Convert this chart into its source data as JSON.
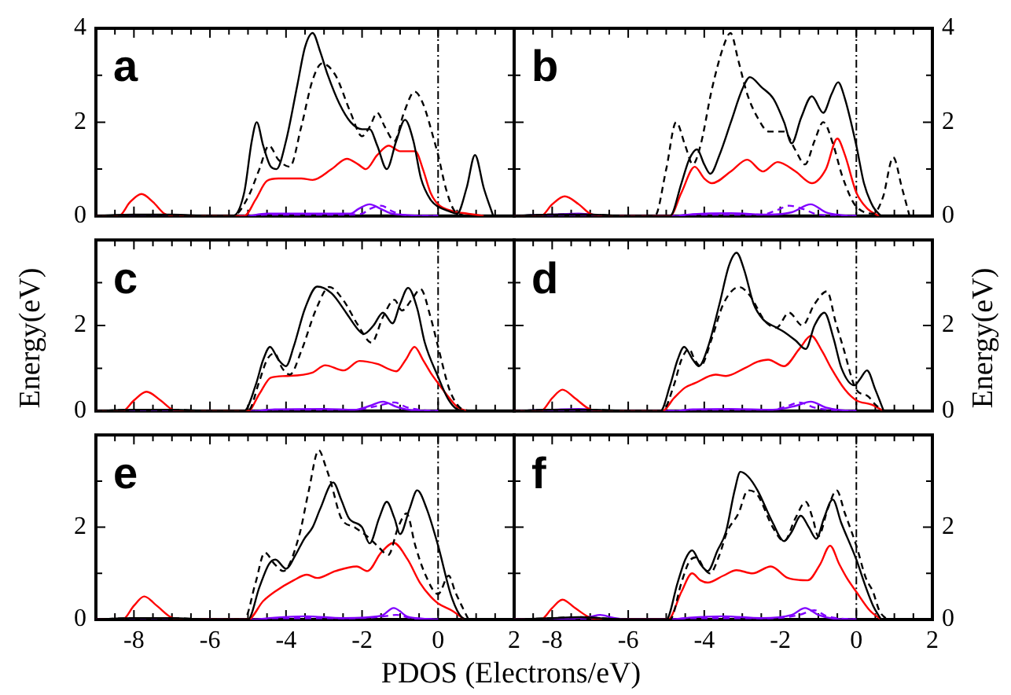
{
  "chart_data": [
    {
      "type": "line",
      "annotations": [
        "a"
      ],
      "xlim": [
        -9,
        2
      ],
      "ylim": [
        0,
        4
      ],
      "tick_labels": "y",
      "xticks": [
        {
          "value": -8.5,
          "label": null
        },
        -8,
        {
          "value": -7.5,
          "label": null
        },
        {
          "value": -7,
          "label": null
        },
        {
          "value": -6.5,
          "label": null
        },
        -6,
        {
          "value": -5.5,
          "label": null
        },
        {
          "value": -5,
          "label": null
        },
        {
          "value": -4.5,
          "label": null
        },
        -4,
        {
          "value": -3.5,
          "label": null
        },
        {
          "value": -3,
          "label": null
        },
        {
          "value": -2.5,
          "label": null
        },
        -2,
        {
          "value": -1.5,
          "label": null
        },
        {
          "value": -1,
          "label": null
        },
        {
          "value": -0.5,
          "label": null
        },
        0,
        {
          "value": 0.5,
          "label": null
        },
        {
          "value": 1,
          "label": null
        },
        {
          "value": 1.5,
          "label": null
        }
      ],
      "yticks": [
        0,
        {
          "value": 1,
          "label": null
        },
        2,
        {
          "value": 3,
          "label": null
        },
        4
      ],
      "ref_lines": [
        {
          "axis": "x",
          "value": 0,
          "line_style": "dashed"
        }
      ],
      "series": [
        {
          "color": "#000000",
          "x": [
            -9,
            -8,
            -7,
            -6,
            -5.4,
            -5.1,
            -4.9,
            -4.77,
            -4.6,
            -4.4,
            -4.25,
            -4,
            -3.7,
            -3.5,
            -3.3,
            -3.1,
            -2.9,
            -2.6,
            -2.3,
            -2,
            -1.8,
            -1.6,
            -1.35,
            -1.1,
            -0.87,
            -0.65,
            -0.45,
            -0.2,
            0,
            0.3,
            0.5,
            0.75,
            0.97,
            1.2,
            1.45
          ],
          "values": [
            0,
            0.03,
            0.03,
            0,
            0,
            0.5,
            1.6,
            2,
            1.5,
            1.05,
            1,
            1.6,
            2.8,
            3.6,
            3.9,
            3.5,
            3,
            2.4,
            2,
            1.85,
            1.85,
            1.5,
            1,
            1.6,
            2.05,
            1.6,
            0.8,
            0.35,
            0.2,
            0.1,
            0.05,
            0.6,
            1.3,
            0.6,
            0
          ]
        },
        {
          "color": "#000000",
          "line_style": "dashed",
          "x": [
            -9,
            -5.4,
            -5,
            -4.7,
            -4.45,
            -4.2,
            -3.9,
            -3.6,
            -3.3,
            -3.05,
            -2.7,
            -2.3,
            -2,
            -1.8,
            -1.6,
            -1.4,
            -1.15,
            -0.9,
            -0.62,
            -0.4,
            -0.1,
            0,
            0.2,
            0.4,
            0.7
          ],
          "values": [
            0,
            0,
            0.4,
            1,
            1.5,
            1.2,
            1.05,
            1.9,
            2.9,
            3.25,
            3,
            2.2,
            1.7,
            1.9,
            2.2,
            1.9,
            1.6,
            2.2,
            2.65,
            2.4,
            1.6,
            1.3,
            0.6,
            0.15,
            0
          ]
        },
        {
          "color": "#ff0000",
          "x": [
            -9,
            -8.4,
            -8.1,
            -7.8,
            -7.5,
            -7.2,
            -6.9,
            -5.1,
            -4.8,
            -4.5,
            -4.2,
            -3.6,
            -3.3,
            -2.8,
            -2.4,
            -2.1,
            -1.9,
            -1.6,
            -1.3,
            -1,
            -0.6,
            -0.4,
            -0.2,
            0,
            0.4,
            0.8,
            1.2
          ],
          "values": [
            0,
            0,
            0.3,
            0.47,
            0.3,
            0.05,
            0,
            0,
            0.35,
            0.75,
            0.8,
            0.8,
            0.77,
            1,
            1.22,
            1.1,
            1,
            1.3,
            1.5,
            1.38,
            1.38,
            1,
            0.5,
            0.25,
            0.1,
            0.05,
            0
          ]
        },
        {
          "color": "#8000ff",
          "x": [
            -5,
            -4.5,
            -3,
            -2.3,
            -2.1,
            -1.8,
            -1.5,
            -1.2,
            0
          ],
          "values": [
            0,
            0.05,
            0.05,
            0.05,
            0.15,
            0.25,
            0.15,
            0.05,
            0
          ]
        },
        {
          "color": "#8000ff",
          "line_style": "dashed",
          "x": [
            -9,
            -5,
            -4.5,
            -2.5,
            -2,
            -1.8,
            -1.5,
            -1.2,
            -0.9,
            0
          ],
          "values": [
            0,
            0,
            0.03,
            0.03,
            0.05,
            0.15,
            0.22,
            0.1,
            0.02,
            0
          ]
        }
      ]
    },
    {
      "type": "line",
      "annotations": [
        "b"
      ],
      "xlim": [
        -9,
        2
      ],
      "ylim": [
        0,
        4
      ],
      "tick_labels": "y",
      "xticks": [
        {
          "value": -8.5,
          "label": null
        },
        -8,
        {
          "value": -7.5,
          "label": null
        },
        {
          "value": -7,
          "label": null
        },
        {
          "value": -6.5,
          "label": null
        },
        -6,
        {
          "value": -5.5,
          "label": null
        },
        {
          "value": -5,
          "label": null
        },
        {
          "value": -4.5,
          "label": null
        },
        -4,
        {
          "value": -3.5,
          "label": null
        },
        {
          "value": -3,
          "label": null
        },
        {
          "value": -2.5,
          "label": null
        },
        -2,
        {
          "value": -1.5,
          "label": null
        },
        {
          "value": -1,
          "label": null
        },
        {
          "value": -0.5,
          "label": null
        },
        0,
        {
          "value": 0.5,
          "label": null
        },
        {
          "value": 1,
          "label": null
        },
        {
          "value": 1.5,
          "label": null
        }
      ],
      "yticks": [
        0,
        {
          "value": 1,
          "label": null
        },
        2,
        {
          "value": 3,
          "label": null
        },
        4
      ],
      "ref_lines": [
        {
          "axis": "x",
          "value": 0,
          "line_style": "dashed"
        }
      ],
      "series": [
        {
          "color": "#000000",
          "x": [
            -9,
            -8,
            -7,
            -6,
            -4.9,
            -4.6,
            -4.4,
            -4.19,
            -4,
            -3.84,
            -3.6,
            -3.3,
            -3,
            -2.8,
            -2.5,
            -2.18,
            -1.9,
            -1.7,
            -1.45,
            -1.17,
            -0.87,
            -0.65,
            -0.48,
            -0.3,
            0,
            0.2,
            0.44,
            0.65
          ],
          "values": [
            0,
            0.03,
            0.03,
            0,
            0,
            0.7,
            1.2,
            1.42,
            1.1,
            0.9,
            1.3,
            2,
            2.7,
            2.96,
            2.75,
            2.5,
            2,
            1.55,
            2.1,
            2.55,
            2.2,
            2.6,
            2.85,
            2.5,
            1.5,
            0.7,
            0.2,
            0
          ]
        },
        {
          "color": "#000000",
          "line_style": "dashed",
          "x": [
            -9,
            -8,
            -7,
            -6,
            -5.3,
            -5,
            -4.74,
            -4.5,
            -4.3,
            -4.1,
            -3.8,
            -3.5,
            -3.31,
            -3.1,
            -2.87,
            -2.6,
            -2.3,
            -1.9,
            -1.6,
            -1.35,
            -1.1,
            -0.87,
            -0.6,
            -0.39,
            -0.15,
            0,
            0.44,
            0.7,
            0.97,
            1.2,
            1.4
          ],
          "values": [
            0,
            0.03,
            0.03,
            0,
            0,
            1,
            2,
            1.5,
            1.1,
            1.5,
            2.7,
            3.6,
            3.9,
            3.3,
            2.6,
            2.1,
            1.8,
            1.8,
            1.4,
            1.1,
            1.6,
            2,
            1.5,
            0.9,
            0.4,
            0.2,
            0.05,
            0.4,
            1.25,
            0.6,
            0
          ]
        },
        {
          "color": "#ff0000",
          "x": [
            -9,
            -8.3,
            -8,
            -7.67,
            -7.3,
            -7,
            -6.6,
            -4.9,
            -4.6,
            -4.25,
            -4,
            -3.8,
            -3.3,
            -2.87,
            -2.46,
            -2.07,
            -1.6,
            -1.17,
            -0.8,
            -0.5,
            -0.3,
            0,
            0.3,
            0.6
          ],
          "values": [
            0,
            0,
            0.25,
            0.42,
            0.25,
            0.05,
            0,
            0,
            0.5,
            1.05,
            0.8,
            0.7,
            0.95,
            1.2,
            0.95,
            1.15,
            0.95,
            0.7,
            1,
            1.65,
            1.3,
            0.5,
            0.15,
            0
          ]
        },
        {
          "color": "#8000ff",
          "x": [
            -9,
            -8,
            -7.3,
            -6.5,
            -4.8,
            -4.3,
            -3.3,
            -2.3,
            -1.7,
            -1.2,
            -0.8,
            -0.4,
            0
          ],
          "values": [
            0,
            0.03,
            0.05,
            0,
            0,
            0.04,
            0.06,
            0.03,
            0.08,
            0.25,
            0.08,
            0.02,
            0
          ]
        },
        {
          "color": "#8000ff",
          "line_style": "dashed",
          "x": [
            -9,
            -4.8,
            -4.3,
            -2.5,
            -2.1,
            -1.77,
            -1.4,
            -1,
            0
          ],
          "values": [
            0,
            0,
            0.03,
            0.03,
            0.12,
            0.22,
            0.15,
            0.03,
            0
          ]
        }
      ]
    },
    {
      "type": "line",
      "annotations": [
        "c"
      ],
      "ylabel": "Energy(eV)",
      "xlim": [
        -9,
        2
      ],
      "ylim": [
        0,
        4
      ],
      "tick_labels": "y",
      "xticks": [
        {
          "value": -8.5,
          "label": null
        },
        -8,
        {
          "value": -7.5,
          "label": null
        },
        {
          "value": -7,
          "label": null
        },
        {
          "value": -6.5,
          "label": null
        },
        -6,
        {
          "value": -5.5,
          "label": null
        },
        {
          "value": -5,
          "label": null
        },
        {
          "value": -4.5,
          "label": null
        },
        -4,
        {
          "value": -3.5,
          "label": null
        },
        {
          "value": -3,
          "label": null
        },
        {
          "value": -2.5,
          "label": null
        },
        -2,
        {
          "value": -1.5,
          "label": null
        },
        {
          "value": -1,
          "label": null
        },
        {
          "value": -0.5,
          "label": null
        },
        0,
        {
          "value": 0.5,
          "label": null
        },
        {
          "value": 1,
          "label": null
        },
        {
          "value": 1.5,
          "label": null
        }
      ],
      "yticks": [
        0,
        {
          "value": 1,
          "label": null
        },
        2,
        {
          "value": 3,
          "label": null
        },
        {
          "value": 4,
          "label": null
        }
      ],
      "ref_lines": [
        {
          "axis": "x",
          "value": 0,
          "line_style": "dashed"
        }
      ],
      "series": [
        {
          "color": "#000000",
          "x": [
            -9,
            -8,
            -7,
            -6,
            -5.1,
            -4.8,
            -4.6,
            -4.42,
            -4.2,
            -4,
            -3.8,
            -3.5,
            -3.18,
            -2.8,
            -2.42,
            -2.1,
            -1.96,
            -1.7,
            -1.45,
            -1.2,
            -1,
            -0.79,
            -0.55,
            -0.35,
            0,
            0.25,
            0.48,
            0.7
          ],
          "values": [
            0,
            0.03,
            0.03,
            0,
            0,
            0.6,
            1.2,
            1.5,
            1.2,
            1.05,
            1.5,
            2.4,
            2.91,
            2.75,
            2.3,
            1.9,
            1.8,
            2,
            2.3,
            2.05,
            2.5,
            2.88,
            2.4,
            1.6,
            0.8,
            0.3,
            0.05,
            0
          ]
        },
        {
          "color": "#000000",
          "line_style": "dashed",
          "x": [
            -9,
            -8,
            -7,
            -6,
            -5,
            -4.7,
            -4.5,
            -4.3,
            -4.1,
            -3.9,
            -3.6,
            -3.2,
            -2.86,
            -2.5,
            -2.1,
            -1.75,
            -1.45,
            -1.15,
            -0.95,
            -0.7,
            -0.46,
            -0.2,
            0,
            0.3,
            0.55,
            0.8
          ],
          "values": [
            0,
            0.03,
            0.03,
            0,
            0,
            0.7,
            1.2,
            1.35,
            1,
            0.85,
            1.4,
            2.4,
            2.9,
            2.6,
            2,
            1.6,
            2.2,
            2.6,
            2.35,
            2.6,
            2.85,
            2.2,
            1.5,
            0.5,
            0.1,
            0
          ]
        },
        {
          "color": "#ff0000",
          "x": [
            -9,
            -8.3,
            -8,
            -7.67,
            -7.3,
            -7,
            -6.7,
            -5,
            -4.7,
            -4.4,
            -4,
            -3.3,
            -2.97,
            -2.48,
            -2.07,
            -1.6,
            -1.1,
            -0.85,
            -0.62,
            -0.4,
            -0.2,
            0,
            0.3,
            0.5,
            0.75
          ],
          "values": [
            0,
            0,
            0.25,
            0.45,
            0.25,
            0.04,
            0,
            0,
            0.4,
            0.78,
            0.82,
            0.9,
            1.07,
            0.95,
            1.17,
            1.1,
            0.93,
            1.2,
            1.5,
            1.2,
            0.9,
            0.65,
            0.3,
            0.1,
            0
          ]
        },
        {
          "color": "#8000ff",
          "x": [
            -4.8,
            -4.3,
            -3,
            -2.2,
            -1.8,
            -1.45,
            -1.1,
            -0.7,
            0
          ],
          "values": [
            0,
            0.04,
            0.05,
            0.03,
            0.12,
            0.22,
            0.1,
            0.02,
            0
          ]
        },
        {
          "color": "#8000ff",
          "line_style": "dashed",
          "x": [
            -9,
            -4.8,
            -4.3,
            -2.2,
            -1.6,
            -1.15,
            -0.8,
            -0.4,
            0
          ],
          "values": [
            0,
            0,
            0.03,
            0.03,
            0.12,
            0.2,
            0.08,
            0.02,
            0
          ]
        }
      ]
    },
    {
      "type": "line",
      "annotations": [
        "d"
      ],
      "ylabel": "Energy(eV)",
      "xlim": [
        -9,
        2
      ],
      "ylim": [
        0,
        4
      ],
      "tick_labels": "y",
      "xticks": [
        {
          "value": -8.5,
          "label": null
        },
        -8,
        {
          "value": -7.5,
          "label": null
        },
        {
          "value": -7,
          "label": null
        },
        {
          "value": -6.5,
          "label": null
        },
        -6,
        {
          "value": -5.5,
          "label": null
        },
        {
          "value": -5,
          "label": null
        },
        {
          "value": -4.5,
          "label": null
        },
        -4,
        {
          "value": -3.5,
          "label": null
        },
        {
          "value": -3,
          "label": null
        },
        {
          "value": -2.5,
          "label": null
        },
        -2,
        {
          "value": -1.5,
          "label": null
        },
        {
          "value": -1,
          "label": null
        },
        {
          "value": -0.5,
          "label": null
        },
        0,
        {
          "value": 0.5,
          "label": null
        },
        {
          "value": 1,
          "label": null
        },
        {
          "value": 1.5,
          "label": null
        }
      ],
      "yticks": [
        0,
        {
          "value": 1,
          "label": null
        },
        2,
        {
          "value": 3,
          "label": null
        },
        {
          "value": 4,
          "label": null
        }
      ],
      "ref_lines": [
        {
          "axis": "x",
          "value": 0,
          "line_style": "dashed"
        }
      ],
      "series": [
        {
          "color": "#000000",
          "x": [
            -9,
            -8,
            -7,
            -6,
            -5.15,
            -4.9,
            -4.7,
            -4.53,
            -4.3,
            -4.14,
            -3.9,
            -3.6,
            -3.35,
            -3.15,
            -2.95,
            -2.7,
            -2.46,
            -2.1,
            -1.9,
            -1.6,
            -1.33,
            -1.1,
            -0.84,
            -0.6,
            -0.39,
            -0.05,
            0.1,
            0.28,
            0.5,
            0.72
          ],
          "values": [
            0,
            0.03,
            0.03,
            0,
            0,
            0.6,
            1.2,
            1.5,
            1.2,
            1.05,
            1.5,
            2.5,
            3.4,
            3.7,
            3.3,
            2.5,
            2.15,
            1.95,
            1.85,
            1.65,
            1.45,
            2,
            2.3,
            1.7,
            1,
            0.6,
            0.75,
            0.95,
            0.5,
            0
          ]
        },
        {
          "color": "#000000",
          "line_style": "dashed",
          "x": [
            -9,
            -8,
            -7,
            -6,
            -5.1,
            -4.8,
            -4.6,
            -4.4,
            -4.25,
            -4.1,
            -3.8,
            -3.5,
            -3.08,
            -2.8,
            -2.4,
            -2.1,
            -1.77,
            -1.42,
            -1.1,
            -0.77,
            -0.55,
            -0.35,
            0,
            0.3,
            0.5,
            0.72
          ],
          "values": [
            0,
            0.03,
            0.03,
            0,
            0,
            0.6,
            1.2,
            1.45,
            1.2,
            1.05,
            1.7,
            2.5,
            2.9,
            2.7,
            2.1,
            1.95,
            2.3,
            2,
            2.5,
            2.8,
            2.1,
            1.5,
            0.5,
            0.35,
            0.15,
            0
          ]
        },
        {
          "color": "#ff0000",
          "x": [
            -9,
            -8.3,
            -8,
            -7.73,
            -7.4,
            -7,
            -6.6,
            -5.1,
            -4.8,
            -4.5,
            -4.25,
            -3.7,
            -3.43,
            -2.94,
            -2.6,
            -2.32,
            -1.9,
            -1.5,
            -1.19,
            -0.9,
            -0.66,
            -0.3,
            0,
            0.4,
            0.72
          ],
          "values": [
            0,
            0,
            0.3,
            0.5,
            0.3,
            0.04,
            0,
            0,
            0.3,
            0.55,
            0.65,
            0.85,
            0.82,
            1,
            1.15,
            1.2,
            1.05,
            1.45,
            1.76,
            1.4,
            1,
            0.5,
            0.25,
            0.15,
            0
          ]
        },
        {
          "color": "#8000ff",
          "x": [
            -9,
            -8,
            -7.3,
            -6.5,
            -4.8,
            -4.3,
            -3.3,
            -2.2,
            -1.6,
            -1.2,
            -0.8,
            -0.4,
            0
          ],
          "values": [
            0,
            0.03,
            0.05,
            0,
            0,
            0.04,
            0.05,
            0.03,
            0.12,
            0.22,
            0.08,
            0.02,
            0
          ]
        },
        {
          "color": "#8000ff",
          "line_style": "dashed",
          "x": [
            -9,
            -4.8,
            -4.3,
            -2.2,
            -1.8,
            -1.5,
            -1.1,
            -0.6,
            0
          ],
          "values": [
            0,
            0,
            0.03,
            0.03,
            0.12,
            0.2,
            0.08,
            0.02,
            0
          ]
        }
      ]
    },
    {
      "type": "line",
      "annotations": [
        "e"
      ],
      "xlabel": "PDOS (Electrons/eV)",
      "xlim": [
        -9,
        2
      ],
      "ylim": [
        0,
        4
      ],
      "xticks": [
        {
          "value": -8.5,
          "label": null
        },
        -8,
        {
          "value": -7.5,
          "label": null
        },
        {
          "value": -7,
          "label": null
        },
        {
          "value": -6.5,
          "label": null
        },
        -6,
        {
          "value": -5.5,
          "label": null
        },
        {
          "value": -5,
          "label": null
        },
        {
          "value": -4.5,
          "label": null
        },
        -4,
        {
          "value": -3.5,
          "label": null
        },
        {
          "value": -3,
          "label": null
        },
        {
          "value": -2.5,
          "label": null
        },
        -2,
        {
          "value": -1.5,
          "label": null
        },
        {
          "value": -1,
          "label": null
        },
        {
          "value": -0.5,
          "label": null
        },
        0,
        {
          "value": 0.5,
          "label": null
        },
        {
          "value": 1,
          "label": null
        },
        {
          "value": 1.5,
          "label": null
        },
        2
      ],
      "yticks": [
        0,
        {
          "value": 1,
          "label": null
        },
        2,
        {
          "value": 3,
          "label": null
        },
        {
          "value": 4,
          "label": null
        }
      ],
      "ref_lines": [
        {
          "axis": "x",
          "value": 0,
          "line_style": "dashed"
        }
      ],
      "series": [
        {
          "color": "#000000",
          "x": [
            -9,
            -8,
            -7,
            -6,
            -5,
            -4.7,
            -4.45,
            -4.28,
            -4,
            -3.75,
            -3.52,
            -3.3,
            -3.1,
            -2.76,
            -2.55,
            -2.35,
            -2,
            -1.8,
            -1.55,
            -1.35,
            -1.15,
            -1,
            -0.75,
            -0.55,
            -0.3,
            0,
            0.35,
            0.62,
            0.8
          ],
          "values": [
            0,
            0.03,
            0.03,
            0,
            0,
            0.7,
            1.2,
            1.3,
            1.1,
            1.4,
            1.75,
            2,
            2.4,
            2.97,
            2.6,
            2.2,
            2,
            1.65,
            2.2,
            2.55,
            2.2,
            1.85,
            2.4,
            2.8,
            2.4,
            1.6,
            0.5,
            0.05,
            0
          ]
        },
        {
          "color": "#000000",
          "line_style": "dashed",
          "x": [
            -9,
            -8,
            -7,
            -6,
            -5.1,
            -4.8,
            -4.56,
            -4.3,
            -4.07,
            -3.66,
            -3.4,
            -3.14,
            -2.95,
            -2.83,
            -2.55,
            -2.2,
            -1.86,
            -1.6,
            -1.31,
            -1.05,
            -0.83,
            -0.6,
            -0.35,
            0,
            0.28,
            0.45,
            0.62,
            0.8
          ],
          "values": [
            0,
            0.03,
            0.03,
            0,
            0,
            0.8,
            1.45,
            1.2,
            1.05,
            1.8,
            2.8,
            3.67,
            3.3,
            3,
            2.2,
            2,
            1.8,
            1.6,
            1.4,
            2,
            2.3,
            1.6,
            1,
            0.55,
            0.95,
            0.6,
            0.3,
            0
          ]
        },
        {
          "color": "#ff0000",
          "x": [
            -9,
            -8.3,
            -8,
            -7.73,
            -7.4,
            -7,
            -6.6,
            -5,
            -4.6,
            -4.3,
            -3.8,
            -3.45,
            -3.18,
            -2.7,
            -2.14,
            -1.86,
            -1.5,
            -1.17,
            -0.8,
            -0.48,
            -0.2,
            0,
            0.35,
            0.7
          ],
          "values": [
            0,
            0,
            0.3,
            0.5,
            0.3,
            0.04,
            0,
            0,
            0.4,
            0.6,
            0.85,
            0.97,
            0.9,
            1.05,
            1.15,
            1.05,
            1.45,
            1.66,
            1.3,
            0.8,
            0.5,
            0.35,
            0.2,
            0
          ]
        },
        {
          "color": "#8000ff",
          "x": [
            -4.8,
            -4.3,
            -3.5,
            -2.5,
            -1.5,
            -1.17,
            -0.8,
            -0.4,
            0
          ],
          "values": [
            0,
            0.04,
            0.07,
            0.03,
            0.08,
            0.25,
            0.06,
            0.02,
            0
          ]
        },
        {
          "color": "#8000ff",
          "line_style": "dashed",
          "x": [
            -9,
            -4.8,
            -4.3,
            -2.2,
            -1.5,
            -1.1,
            -0.7,
            0
          ],
          "values": [
            0,
            0,
            0.03,
            0.03,
            0.06,
            0.1,
            0.03,
            0
          ]
        }
      ]
    },
    {
      "type": "line",
      "annotations": [
        "f"
      ],
      "xlim": [
        -9,
        2
      ],
      "ylim": [
        0,
        4
      ],
      "xticks": [
        {
          "value": -8.5,
          "label": null
        },
        -8,
        {
          "value": -7.5,
          "label": null
        },
        {
          "value": -7,
          "label": null
        },
        {
          "value": -6.5,
          "label": null
        },
        -6,
        {
          "value": -5.5,
          "label": null
        },
        {
          "value": -5,
          "label": null
        },
        {
          "value": -4.5,
          "label": null
        },
        -4,
        {
          "value": -3.5,
          "label": null
        },
        {
          "value": -3,
          "label": null
        },
        {
          "value": -2.5,
          "label": null
        },
        -2,
        {
          "value": -1.5,
          "label": null
        },
        {
          "value": -1,
          "label": null
        },
        {
          "value": -0.5,
          "label": null
        },
        0,
        {
          "value": 0.5,
          "label": null
        },
        {
          "value": 1,
          "label": null
        },
        {
          "value": 1.5,
          "label": null
        },
        2
      ],
      "yticks": [
        0,
        {
          "value": 1,
          "label": null
        },
        2,
        {
          "value": 3,
          "label": null
        },
        {
          "value": 4,
          "label": null
        }
      ],
      "ref_lines": [
        {
          "axis": "x",
          "value": 0,
          "line_style": "dashed"
        }
      ],
      "series": [
        {
          "color": "#000000",
          "x": [
            -9,
            -8,
            -7.3,
            -6,
            -5,
            -4.7,
            -4.5,
            -4.32,
            -4.1,
            -3.91,
            -3.65,
            -3.43,
            -3.2,
            -3.05,
            -2.85,
            -2.6,
            -2.2,
            -1.9,
            -1.7,
            -1.46,
            -1.25,
            -1.05,
            -0.85,
            -0.62,
            -0.4,
            0,
            0.25,
            0.44,
            0.65
          ],
          "values": [
            0,
            0.03,
            0.05,
            0,
            0,
            0.8,
            1.3,
            1.5,
            1.2,
            1.05,
            1.5,
            1.9,
            2.8,
            3.2,
            3.1,
            2.8,
            2.1,
            1.7,
            1.9,
            2.25,
            2,
            1.75,
            2.2,
            2.6,
            2.1,
            1.3,
            0.7,
            0.3,
            0
          ]
        },
        {
          "color": "#000000",
          "line_style": "dashed",
          "x": [
            -9,
            -8,
            -7.3,
            -6,
            -4.9,
            -4.6,
            -4.4,
            -4.2,
            -4,
            -3.85,
            -3.6,
            -3.4,
            -3.1,
            -2.85,
            -2.6,
            -2.2,
            -1.9,
            -1.6,
            -1.33,
            -1.15,
            -1,
            -0.75,
            -0.52,
            -0.3,
            0,
            0.25,
            0.44,
            0.6,
            0.8
          ],
          "values": [
            0,
            0.03,
            0.05,
            0,
            0,
            0.8,
            1.25,
            1.35,
            1.1,
            1,
            1.4,
            1.9,
            2.3,
            2.8,
            2.7,
            2,
            1.7,
            2.2,
            2.55,
            2.2,
            1.8,
            2.4,
            2.8,
            2.3,
            1.6,
            0.9,
            0.6,
            0.2,
            0
          ]
        },
        {
          "color": "#ff0000",
          "x": [
            -9,
            -8.3,
            -8,
            -7.73,
            -7.4,
            -7,
            -6.6,
            -4.95,
            -4.6,
            -4.32,
            -4.1,
            -3.91,
            -3.5,
            -3.15,
            -2.73,
            -2.25,
            -1.8,
            -1.28,
            -0.95,
            -0.69,
            -0.45,
            -0.25,
            0,
            0.35,
            0.65
          ],
          "values": [
            0,
            0,
            0.25,
            0.43,
            0.25,
            0.04,
            0,
            0,
            0.6,
            1,
            0.85,
            0.8,
            0.95,
            1.07,
            1,
            1.15,
            0.9,
            0.85,
            1.2,
            1.6,
            1.2,
            0.9,
            0.6,
            0.2,
            0
          ]
        },
        {
          "color": "#8000ff",
          "x": [
            -9,
            -7.6,
            -7,
            -6.74,
            -6.4,
            -6,
            -4.9,
            -4.4,
            -3.5,
            -2.5,
            -1.7,
            -1.35,
            -1,
            -0.6,
            0
          ],
          "values": [
            0,
            0.02,
            0.06,
            0.1,
            0.04,
            0,
            0,
            0.04,
            0.07,
            0.03,
            0.1,
            0.25,
            0.1,
            0.02,
            0
          ]
        },
        {
          "color": "#8000ff",
          "line_style": "dashed",
          "x": [
            -9,
            -4.9,
            -4.4,
            -2.2,
            -1.5,
            -1.1,
            -0.8,
            -0.4,
            0
          ],
          "values": [
            0,
            0,
            0.03,
            0.03,
            0.1,
            0.2,
            0.08,
            0.02,
            0
          ]
        }
      ]
    }
  ]
}
